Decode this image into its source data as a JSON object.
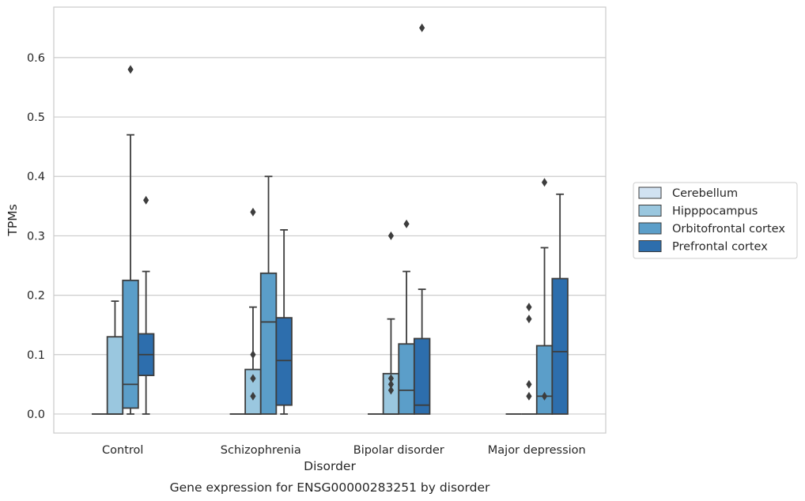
{
  "caption": "Gene expression for ENSG00000283251 by disorder",
  "chart_data": {
    "type": "box",
    "xlabel": "Disorder",
    "ylabel": "TPMs",
    "ylim": [
      -0.032,
      0.685
    ],
    "yticks": [
      0.0,
      0.1,
      0.2,
      0.3,
      0.4,
      0.5,
      0.6
    ],
    "ytick_labels": [
      "0.0",
      "0.1",
      "0.2",
      "0.3",
      "0.4",
      "0.5",
      "0.6"
    ],
    "grid": "horizontal",
    "legend_position": "right",
    "categories": [
      "Control",
      "Schizophrenia",
      "Bipolar disorder",
      "Major depression"
    ],
    "series": [
      {
        "name": "Cerebellum",
        "color": "#d1e2f2",
        "boxes": [
          {
            "whislo": 0,
            "q1": 0,
            "med": 0,
            "q3": 0,
            "whishi": 0,
            "fliers": []
          },
          {
            "whislo": 0,
            "q1": 0,
            "med": 0,
            "q3": 0,
            "whishi": 0,
            "fliers": []
          },
          {
            "whislo": 0,
            "q1": 0,
            "med": 0,
            "q3": 0,
            "whishi": 0,
            "fliers": []
          },
          {
            "whislo": 0,
            "q1": 0,
            "med": 0,
            "q3": 0,
            "whishi": 0,
            "fliers": []
          }
        ]
      },
      {
        "name": "Hipppocampus",
        "color": "#9ac7df",
        "boxes": [
          {
            "whislo": 0,
            "q1": 0,
            "med": 0,
            "q3": 0.13,
            "whishi": 0.19,
            "fliers": []
          },
          {
            "whislo": 0,
            "q1": 0,
            "med": 0,
            "q3": 0.075,
            "whishi": 0.18,
            "fliers": [
              0.03,
              0.06,
              0.1,
              0.34
            ]
          },
          {
            "whislo": 0,
            "q1": 0,
            "med": 0,
            "q3": 0.068,
            "whishi": 0.16,
            "fliers": [
              0.04,
              0.05,
              0.06,
              0.3
            ]
          },
          {
            "whislo": 0,
            "q1": 0,
            "med": 0,
            "q3": 0,
            "whishi": 0,
            "fliers": [
              0.03,
              0.05,
              0.16,
              0.18
            ]
          }
        ]
      },
      {
        "name": "Orbitofrontal cortex",
        "color": "#5b9ec9",
        "boxes": [
          {
            "whislo": 0,
            "q1": 0.01,
            "med": 0.05,
            "q3": 0.225,
            "whishi": 0.47,
            "fliers": [
              0.58
            ]
          },
          {
            "whislo": 0,
            "q1": 0,
            "med": 0.155,
            "q3": 0.237,
            "whishi": 0.4,
            "fliers": []
          },
          {
            "whislo": 0,
            "q1": 0,
            "med": 0.04,
            "q3": 0.118,
            "whishi": 0.24,
            "fliers": [
              0.32
            ]
          },
          {
            "whislo": 0,
            "q1": 0,
            "med": 0.03,
            "q3": 0.115,
            "whishi": 0.28,
            "fliers": [
              0.03,
              0.39
            ]
          }
        ]
      },
      {
        "name": "Prefrontal cortex",
        "color": "#2d6ead",
        "boxes": [
          {
            "whislo": 0,
            "q1": 0.065,
            "med": 0.1,
            "q3": 0.135,
            "whishi": 0.24,
            "fliers": [
              0.36
            ]
          },
          {
            "whislo": 0,
            "q1": 0.015,
            "med": 0.09,
            "q3": 0.162,
            "whishi": 0.31,
            "fliers": []
          },
          {
            "whislo": 0,
            "q1": 0,
            "med": 0.015,
            "q3": 0.127,
            "whishi": 0.21,
            "fliers": [
              0.65
            ]
          },
          {
            "whislo": 0,
            "q1": 0,
            "med": 0.105,
            "q3": 0.228,
            "whishi": 0.37,
            "fliers": []
          }
        ]
      }
    ]
  }
}
